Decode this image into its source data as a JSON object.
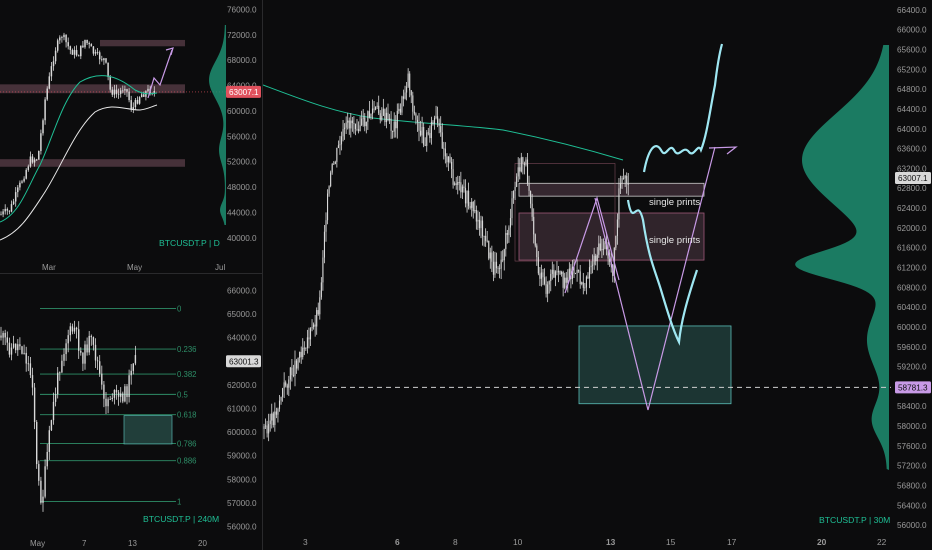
{
  "colors": {
    "background": "#0c0c0d",
    "candle": "#d9d9d9",
    "ma_teal": "#1fbf95",
    "ma_white": "#e8e8e8",
    "volume_profile": "#1f8f72",
    "projection_cyan": "#9fe7f2",
    "projection_violet": "#c89ae6",
    "zone_teal": "#5ec7c0",
    "zone_pink": "#c26c93",
    "price_label_red": "#e0515d",
    "price_label_violet": "#c89ae6",
    "fib_green": "#2e8f68"
  },
  "chart_data": [
    {
      "id": "daily",
      "type": "candlestick",
      "symbol_label": "BTCUSDT.P | D",
      "price_axis_ticks": [
        76000,
        72000,
        68000,
        64000,
        60000,
        56000,
        52000,
        48000,
        44000,
        40000
      ],
      "price_axis_labels": [
        "76000.0",
        "72000.0",
        "68000.0",
        "64000.0",
        "60000.0",
        "56000.0",
        "52000.0",
        "48000.0",
        "44000.0",
        "40000.0"
      ],
      "ylim": [
        36500,
        77500
      ],
      "time_labels": [
        "Mar",
        "May",
        "Jul"
      ],
      "current_price_label": "63007.1",
      "current_price": 63007.1,
      "zones": [
        {
          "low": 70200,
          "high": 71200
        },
        {
          "low": 62800,
          "high": 64200
        },
        {
          "low": 51200,
          "high": 52400
        }
      ],
      "indicators": [
        "moving-average-teal",
        "moving-average-white"
      ],
      "projection": "upward arrow"
    },
    {
      "id": "h4",
      "type": "candlestick",
      "symbol_label": "BTCUSDT.P | 240M",
      "price_axis_ticks": [
        66000,
        65000,
        64000,
        63000,
        62000,
        61000,
        60000,
        59000,
        58000,
        57000,
        56000
      ],
      "price_axis_labels": [
        "66000.0",
        "65000.0",
        "64000.0",
        "63000.0",
        "62000.0",
        "61000.0",
        "60000.0",
        "59000.0",
        "58000.0",
        "57000.0",
        "56000.0"
      ],
      "ylim": [
        55600,
        66700
      ],
      "time_labels": [
        "May",
        "7",
        "13",
        "20"
      ],
      "current_price_label": "63001.3",
      "current_price": 63001.3,
      "fib_levels": [
        {
          "label": "0",
          "price": 65240
        },
        {
          "label": "0.236",
          "price": 63520
        },
        {
          "label": "0.382",
          "price": 62460
        },
        {
          "label": "0.5",
          "price": 61600
        },
        {
          "label": "0.618",
          "price": 60740
        },
        {
          "label": "0.786",
          "price": 59520
        },
        {
          "label": "0.886",
          "price": 58790
        },
        {
          "label": "1",
          "price": 57060
        }
      ],
      "zone": {
        "low": 59500,
        "high": 60700
      }
    },
    {
      "id": "m30",
      "type": "candlestick",
      "symbol_label": "BTCUSDT.P | 30M",
      "price_axis_ticks": [
        66400,
        66000,
        65600,
        65200,
        64800,
        64400,
        64000,
        63600,
        63200,
        62800,
        62400,
        62000,
        61600,
        61200,
        60800,
        60400,
        60000,
        59600,
        59200,
        58800,
        58400,
        58000,
        57600,
        57200,
        56800,
        56400,
        56000
      ],
      "price_axis_labels": [
        "66400.0",
        "66000.0",
        "65600.0",
        "65200.0",
        "64800.0",
        "64400.0",
        "64000.0",
        "63600.0",
        "63200.0",
        "62800.0",
        "62400.0",
        "62000.0",
        "61600.0",
        "61200.0",
        "60800.0",
        "60400.0",
        "60000.0",
        "59600.0",
        "59200.0",
        "58800.0",
        "58400.0",
        "58000.0",
        "57600.0",
        "57200.0",
        "56800.0",
        "56400.0",
        "56000.0"
      ],
      "ylim": [
        55800,
        66600
      ],
      "time_labels": [
        "3",
        "6",
        "8",
        "10",
        "13",
        "15",
        "17",
        "20",
        "22"
      ],
      "current_price_label": "63007.1",
      "current_price": 63007.1,
      "level_label": "58781.3",
      "level_price": 58781.3,
      "annotations": [
        "single prints",
        "single prints"
      ],
      "single_print_zones": [
        {
          "low": 62640,
          "high": 62900
        },
        {
          "low": 61350,
          "high": 62300
        }
      ],
      "demand_zone": {
        "low": 58450,
        "high": 60020
      }
    }
  ]
}
